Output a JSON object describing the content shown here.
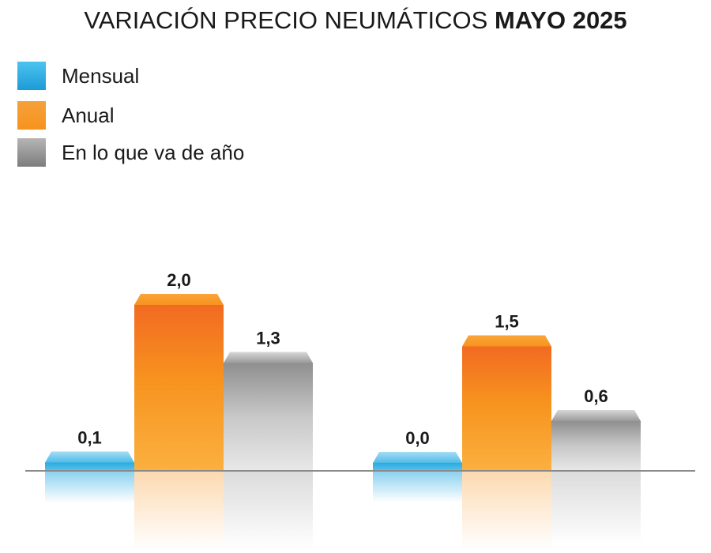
{
  "chart_data": {
    "type": "bar",
    "title": "VARIACIÓN PRECIO NEUMÁTICOS",
    "title_bold": "MAYO 2025",
    "categories": [
      "",
      ""
    ],
    "series": [
      {
        "name": "Mensual",
        "values": [
          0.1,
          0.0
        ],
        "labels": [
          "0,1",
          "0,0"
        ],
        "color": "#29ABE2"
      },
      {
        "name": "Anual",
        "values": [
          2.0,
          1.5
        ],
        "labels": [
          "2,0",
          "1,5"
        ],
        "color": "#F7931E"
      },
      {
        "name": "En lo que va de año",
        "values": [
          1.3,
          0.6
        ],
        "labels": [
          "1,3",
          "0,6"
        ],
        "color": "#999999"
      }
    ],
    "ylim": [
      0,
      2.0
    ],
    "xlabel": "",
    "ylabel": "",
    "grid": false,
    "legend": "top-left"
  }
}
